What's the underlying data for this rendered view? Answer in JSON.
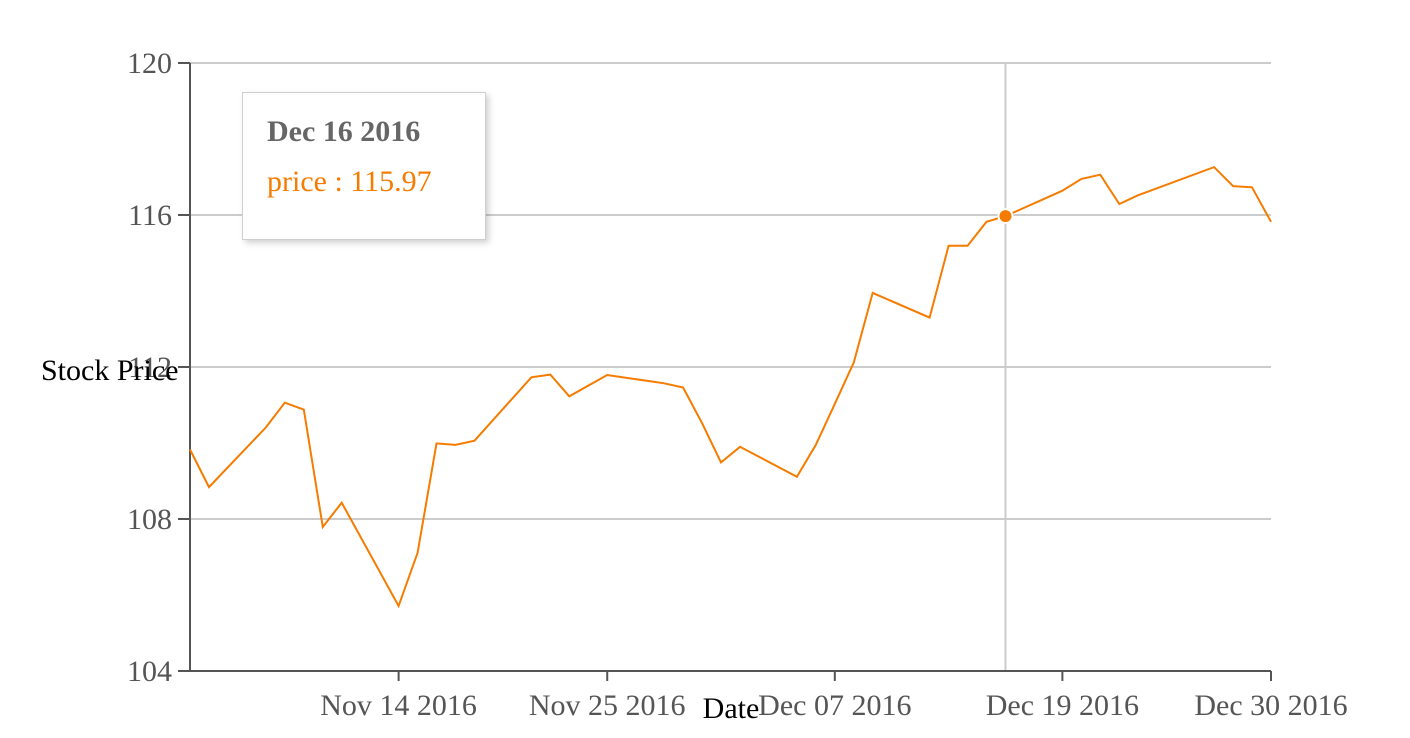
{
  "chart_data": {
    "type": "line",
    "xlabel": "Date",
    "ylabel": "Stock Price",
    "ylim": [
      104,
      120
    ],
    "y_ticks": [
      "104",
      "108",
      "112",
      "116",
      "120"
    ],
    "x_ticks": [
      "Nov 14 2016",
      "Nov 25 2016",
      "Dec 07 2016",
      "Dec 19 2016",
      "Dec 30 2016"
    ],
    "x_tick_dates": [
      "2016-11-14",
      "2016-11-25",
      "2016-12-07",
      "2016-12-19",
      "2016-12-30"
    ],
    "x_range": [
      "2016-11-03",
      "2016-12-30"
    ],
    "grid": "horizontal",
    "line_color": "#f57c00",
    "series": [
      {
        "name": "price",
        "x": [
          "2016-11-03",
          "2016-11-04",
          "2016-11-07",
          "2016-11-08",
          "2016-11-09",
          "2016-11-10",
          "2016-11-11",
          "2016-11-14",
          "2016-11-15",
          "2016-11-16",
          "2016-11-17",
          "2016-11-18",
          "2016-11-21",
          "2016-11-22",
          "2016-11-23",
          "2016-11-25",
          "2016-11-28",
          "2016-11-29",
          "2016-11-30",
          "2016-12-01",
          "2016-12-02",
          "2016-12-05",
          "2016-12-06",
          "2016-12-07",
          "2016-12-08",
          "2016-12-09",
          "2016-12-12",
          "2016-12-13",
          "2016-12-14",
          "2016-12-15",
          "2016-12-16",
          "2016-12-19",
          "2016-12-20",
          "2016-12-21",
          "2016-12-22",
          "2016-12-23",
          "2016-12-27",
          "2016-12-28",
          "2016-12-29",
          "2016-12-30"
        ],
        "values": [
          109.83,
          108.84,
          110.41,
          111.06,
          110.88,
          107.79,
          108.43,
          105.71,
          107.11,
          109.99,
          109.95,
          110.06,
          111.73,
          111.8,
          111.23,
          111.79,
          111.57,
          111.46,
          110.52,
          109.49,
          109.9,
          109.11,
          109.95,
          111.03,
          112.12,
          113.95,
          113.3,
          115.19,
          115.19,
          115.82,
          115.97,
          116.64,
          116.95,
          117.06,
          116.29,
          116.52,
          117.26,
          116.76,
          116.73,
          115.82
        ]
      }
    ],
    "hover": {
      "index": 30,
      "date": "Dec 16 2016",
      "label": "price : 115.97"
    }
  }
}
